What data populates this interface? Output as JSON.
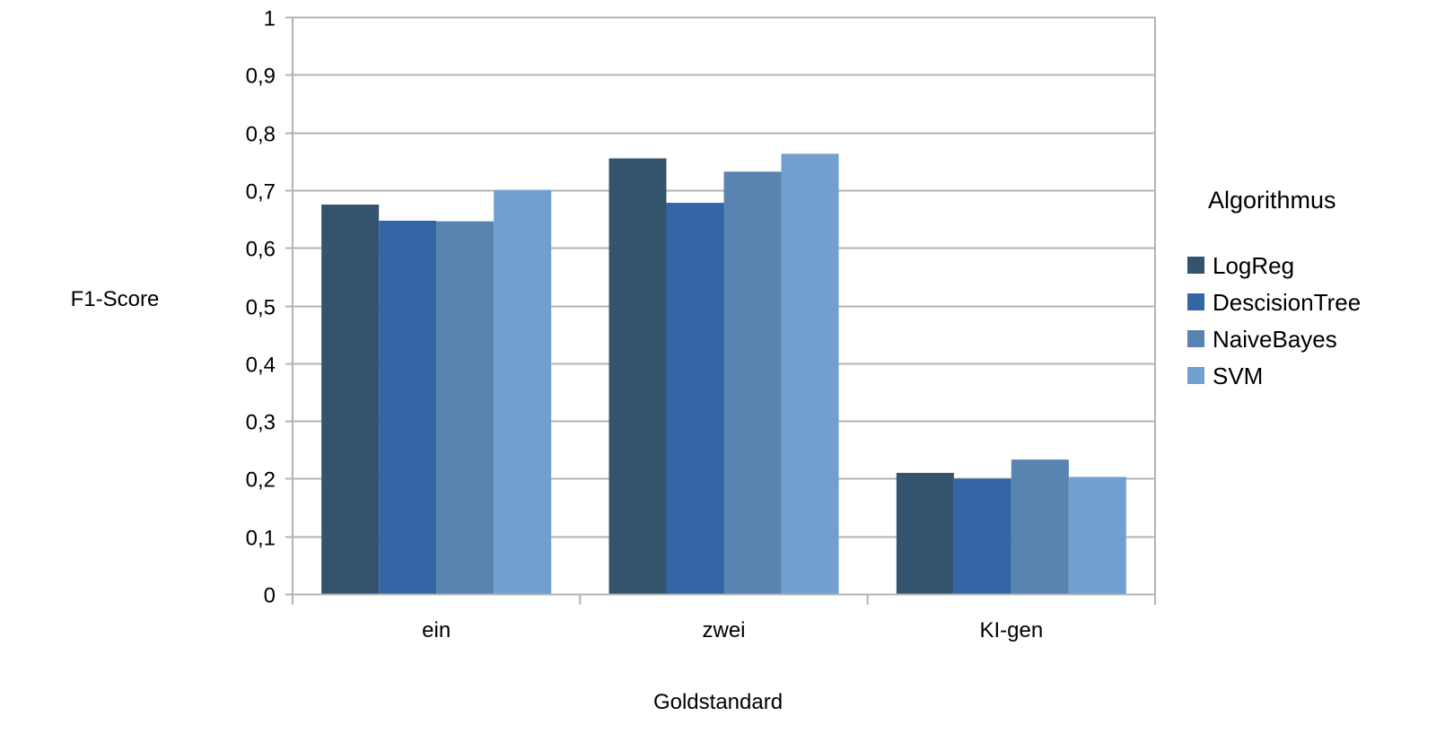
{
  "chart_data": {
    "type": "bar",
    "title": "",
    "xlabel": "Goldstandard",
    "ylabel": "F1-Score",
    "ylim": [
      0,
      1
    ],
    "ytick_step": 0.1,
    "ytick_labels": [
      "0",
      "0,1",
      "0,2",
      "0,3",
      "0,4",
      "0,5",
      "0,6",
      "0,7",
      "0,8",
      "0,9",
      "1"
    ],
    "grid": true,
    "legend_position": "right",
    "legend_title": "Algorithmus",
    "categories": [
      "ein",
      "zwei",
      "KI-gen"
    ],
    "series": [
      {
        "name": "LogReg",
        "color": "#34536d",
        "values": [
          0.675,
          0.755,
          0.21
        ]
      },
      {
        "name": "DescisionTree",
        "color": "#3465a4",
        "values": [
          0.647,
          0.678,
          0.2
        ]
      },
      {
        "name": "NaiveBayes",
        "color": "#5983b0",
        "values": [
          0.646,
          0.732,
          0.233
        ]
      },
      {
        "name": "SVM",
        "color": "#729fcf",
        "values": [
          0.7,
          0.763,
          0.203
        ]
      }
    ]
  }
}
